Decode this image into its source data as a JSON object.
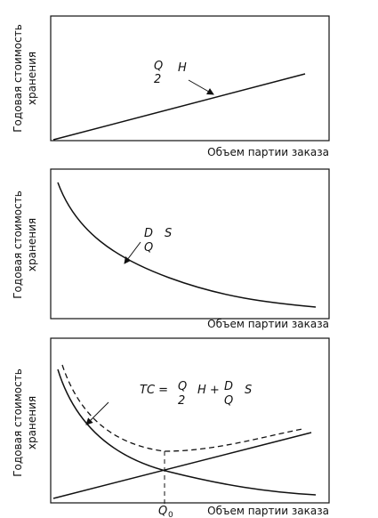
{
  "panels": [
    {
      "y_label": [
        "Годовая стоимость",
        "хранения"
      ],
      "x_label": "Объем партии заказа",
      "annotation": {
        "top": "Q",
        "bottom": "2",
        "factor": "H"
      }
    },
    {
      "y_label": [
        "Годовая стоимость",
        "хранения"
      ],
      "x_label": "Объем партии заказа",
      "annotation": {
        "top": "D",
        "bottom": "Q",
        "factor": "S"
      }
    },
    {
      "y_label": [
        "Годовая стоимость",
        "хранения"
      ],
      "x_label": "Объем партии заказа",
      "formula": {
        "lhs": "TC =",
        "t1_top": "Q",
        "t1_bottom": "2",
        "t1_factor": "H +",
        "t2_top": "D",
        "t2_bottom": "Q",
        "t2_factor": "S"
      },
      "optimum": {
        "symbol": "Q",
        "subscript": "0"
      }
    }
  ]
}
